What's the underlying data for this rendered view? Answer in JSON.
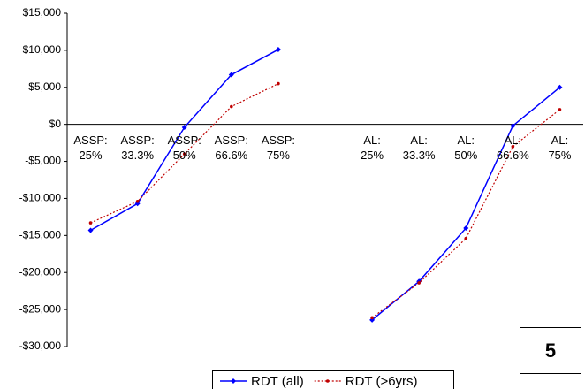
{
  "chart_data": {
    "type": "line",
    "categories": [
      "ASSP: 25%",
      "ASSP: 33.3%",
      "ASSP: 50%",
      "ASSP: 66.6%",
      "ASSP: 75%",
      null,
      "AL: 25%",
      "AL: 33.3%",
      "AL: 50%",
      "AL: 66.6%",
      "AL: 75%"
    ],
    "series": [
      {
        "name": "RDT (all)",
        "color": "#0000ff",
        "values": [
          -14300,
          -10700,
          -400,
          6700,
          10100,
          null,
          -26400,
          -21200,
          -14000,
          -200,
          5000
        ]
      },
      {
        "name": "RDT (>6yrs)",
        "color": "#c00000",
        "values": [
          -13300,
          -10400,
          -4000,
          2400,
          5500,
          null,
          -26100,
          -21400,
          -15400,
          -3000,
          2000
        ]
      }
    ],
    "ylim": [
      -30000,
      15000
    ],
    "yticks": [
      {
        "value": -30000,
        "label": "-$30,000"
      },
      {
        "value": -25000,
        "label": "-$25,000"
      },
      {
        "value": -20000,
        "label": "-$20,000"
      },
      {
        "value": -15000,
        "label": "-$15,000"
      },
      {
        "value": -10000,
        "label": "-$10,000"
      },
      {
        "value": -5000,
        "label": "-$5,000"
      },
      {
        "value": 0,
        "label": "$0"
      },
      {
        "value": 5000,
        "label": "$5,000"
      },
      {
        "value": 10000,
        "label": "$10,000"
      },
      {
        "value": 15000,
        "label": "$15,000"
      }
    ],
    "grid": false,
    "legend": "bottom",
    "annotation": "5"
  }
}
